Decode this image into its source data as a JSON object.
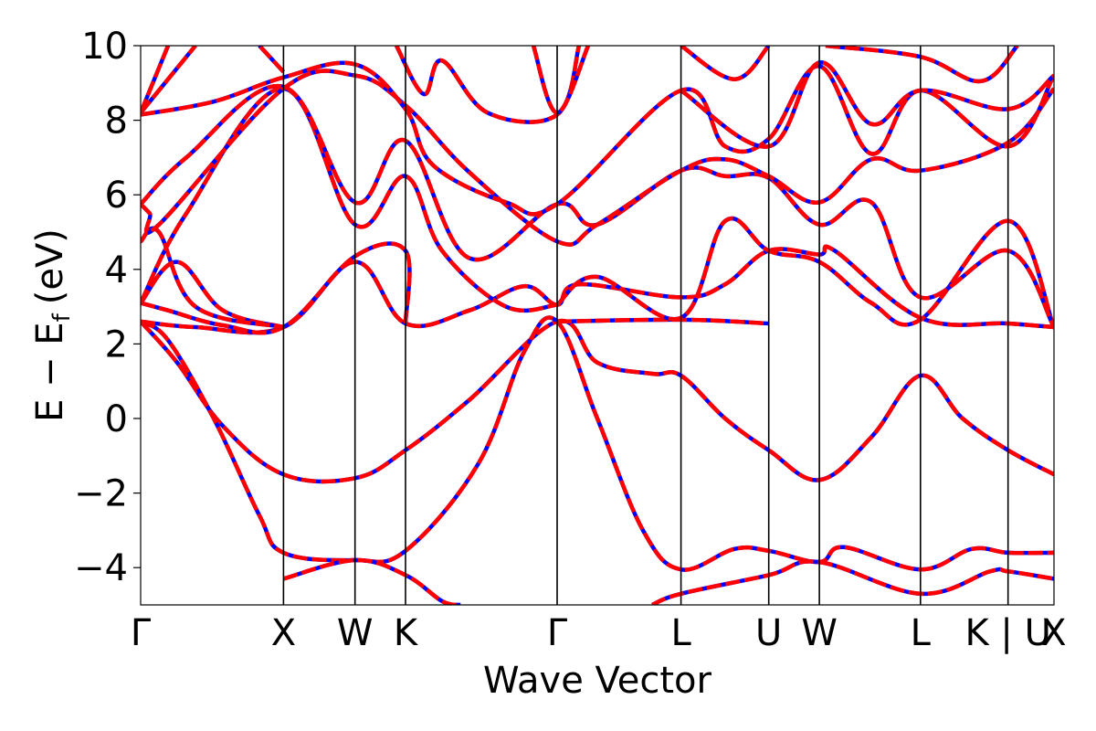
{
  "chart_data": {
    "type": "line",
    "title": "",
    "xlabel": "Wave Vector",
    "ylabel": "E − E",
    "ylabel_subscript": "f",
    "ylabel_unit": "(eV)",
    "ylim": [
      -5,
      10
    ],
    "yticks": [
      {
        "value": -4,
        "label": "−4"
      },
      {
        "value": -2,
        "label": "−2"
      },
      {
        "value": 0,
        "label": "0"
      },
      {
        "value": 2,
        "label": "2"
      },
      {
        "value": 4,
        "label": "4"
      },
      {
        "value": 6,
        "label": "6"
      },
      {
        "value": 8,
        "label": "8"
      },
      {
        "value": 10,
        "label": "10"
      }
    ],
    "kpoints": [
      {
        "label": "Γ",
        "x": 0.0
      },
      {
        "label": "X",
        "x": 0.1564
      },
      {
        "label": "W",
        "x": 0.2347
      },
      {
        "label": "K",
        "x": 0.29
      },
      {
        "label": "Γ",
        "x": 0.456
      },
      {
        "label": "L",
        "x": 0.5916
      },
      {
        "label": "U",
        "x": 0.6877
      },
      {
        "label": "W",
        "x": 0.7431
      },
      {
        "label": "L",
        "x": 0.8538
      },
      {
        "label": "K | U",
        "x": 0.9497
      },
      {
        "label": "X",
        "x": 1.0
      }
    ],
    "colors": {
      "line_a": "#ff0000",
      "line_b": "#0000ff",
      "frame": "#000000"
    },
    "series": [
      {
        "values": [
          [
            0,
            2.6
          ],
          [
            0.04,
            1.5
          ],
          [
            0.09,
            -0.2
          ],
          [
            0.1564,
            -1.5
          ],
          [
            0.2347,
            -1.6
          ],
          [
            0.29,
            -0.85
          ],
          [
            0.36,
            0.5
          ],
          [
            0.456,
            2.6
          ],
          [
            0.5,
            1.5
          ],
          [
            0.56,
            1.2
          ],
          [
            0.5916,
            1.15
          ],
          [
            0.64,
            0
          ],
          [
            0.6877,
            -0.85
          ],
          [
            0.7431,
            -1.65
          ],
          [
            0.8,
            -0.5
          ],
          [
            0.8538,
            1.15
          ],
          [
            0.9,
            0
          ],
          [
            0.9497,
            -0.85
          ],
          [
            1.0,
            -1.5
          ]
        ]
      },
      {
        "values": [
          [
            0,
            2.6
          ],
          [
            0.03,
            2.1
          ],
          [
            0.08,
            0.0
          ],
          [
            0.13,
            -2.6
          ],
          [
            0.1564,
            -3.6
          ],
          [
            0.2347,
            -3.8
          ],
          [
            0.29,
            -3.55
          ],
          [
            0.37,
            -1.2
          ],
          [
            0.42,
            1.8
          ],
          [
            0.456,
            2.6
          ],
          [
            0.5,
            0.0
          ],
          [
            0.55,
            -3.0
          ],
          [
            0.5916,
            -4.05
          ],
          [
            0.65,
            -3.5
          ],
          [
            0.6877,
            -3.55
          ],
          [
            0.7431,
            -3.85
          ],
          [
            0.77,
            -3.45
          ],
          [
            0.8538,
            -4.05
          ],
          [
            0.91,
            -3.5
          ],
          [
            0.9497,
            -3.6
          ],
          [
            1.0,
            -3.6
          ]
        ]
      },
      {
        "values": [
          [
            0.1564,
            -4.3
          ],
          [
            0.2347,
            -3.8
          ],
          [
            0.29,
            -4.2
          ],
          [
            0.33,
            -4.9
          ],
          [
            0.35,
            -5.0
          ]
        ]
      },
      {
        "values": [
          [
            0.56,
            -5.0
          ],
          [
            0.5916,
            -4.7
          ],
          [
            0.6877,
            -4.2
          ],
          [
            0.7431,
            -3.85
          ],
          [
            0.8538,
            -4.7
          ],
          [
            0.93,
            -4.1
          ],
          [
            0.9497,
            -4.1
          ],
          [
            1.0,
            -4.3
          ]
        ]
      },
      {
        "values": [
          [
            0,
            2.6
          ],
          [
            0.06,
            2.45
          ],
          [
            0.1564,
            2.45
          ],
          [
            0.2347,
            4.2
          ],
          [
            0.29,
            2.55
          ],
          [
            0.36,
            2.9
          ],
          [
            0.42,
            3.55
          ],
          [
            0.456,
            3.05
          ],
          [
            0.48,
            3.6
          ],
          [
            0.5916,
            3.25
          ],
          [
            0.64,
            3.6
          ],
          [
            0.6877,
            4.5
          ],
          [
            0.7431,
            4.4
          ],
          [
            0.76,
            4.5
          ],
          [
            0.8538,
            2.7
          ],
          [
            0.9497,
            2.55
          ],
          [
            1.0,
            2.45
          ]
        ]
      },
      {
        "values": [
          [
            0,
            3.1
          ],
          [
            0.03,
            2.9
          ],
          [
            0.09,
            2.5
          ],
          [
            0.1564,
            2.45
          ],
          [
            0.2347,
            4.35
          ],
          [
            0.29,
            4.5
          ],
          [
            0.29,
            2.55
          ]
        ]
      },
      {
        "values": [
          [
            0.456,
            2.6
          ],
          [
            0.5916,
            2.65
          ],
          [
            0.6877,
            2.55
          ]
        ]
      },
      {
        "values": [
          [
            0.456,
            3.05
          ],
          [
            0.5,
            3.8
          ],
          [
            0.5916,
            2.7
          ],
          [
            0.64,
            5.3
          ],
          [
            0.6877,
            4.5
          ],
          [
            0.7431,
            4.2
          ],
          [
            0.8,
            3.1
          ],
          [
            0.8538,
            2.65
          ],
          [
            0.9497,
            5.3
          ],
          [
            1.0,
            2.45
          ]
        ]
      },
      {
        "values": [
          [
            0,
            3.1
          ],
          [
            0.04,
            4.2
          ],
          [
            0.09,
            2.9
          ],
          [
            0.1564,
            2.45
          ]
        ]
      },
      {
        "values": [
          [
            0,
            4.75
          ],
          [
            0.02,
            5.0
          ],
          [
            0.06,
            3.0
          ],
          [
            0.1564,
            2.45
          ]
        ]
      },
      {
        "values": [
          [
            0,
            3.1
          ],
          [
            0.05,
            5.5
          ],
          [
            0.1564,
            8.85
          ],
          [
            0.2347,
            5.2
          ],
          [
            0.29,
            6.5
          ],
          [
            0.33,
            4.5
          ],
          [
            0.4,
            3.0
          ],
          [
            0.456,
            3.05
          ]
        ]
      },
      {
        "values": [
          [
            0,
            5.75
          ],
          [
            0.05,
            7.0
          ],
          [
            0.1564,
            8.9
          ],
          [
            0.2347,
            5.8
          ],
          [
            0.29,
            7.45
          ],
          [
            0.36,
            4.3
          ],
          [
            0.456,
            5.75
          ],
          [
            0.5,
            5.2
          ],
          [
            0.5916,
            6.65
          ],
          [
            0.64,
            6.5
          ],
          [
            0.6877,
            6.45
          ],
          [
            0.7431,
            5.2
          ],
          [
            0.8,
            5.8
          ],
          [
            0.8538,
            3.25
          ],
          [
            0.9497,
            4.5
          ],
          [
            1.0,
            2.45
          ]
        ]
      },
      {
        "values": [
          [
            0,
            5.75
          ],
          [
            0.01,
            5.5
          ],
          [
            0.02,
            5.2
          ],
          [
            0.1564,
            8.85
          ],
          [
            0.2347,
            9.2
          ],
          [
            0.29,
            8.4
          ],
          [
            0.36,
            6.6
          ],
          [
            0.456,
            4.75
          ],
          [
            0.5,
            5.2
          ],
          [
            0.5916,
            6.65
          ],
          [
            0.64,
            6.95
          ],
          [
            0.6877,
            6.5
          ],
          [
            0.7431,
            5.8
          ],
          [
            0.8,
            6.95
          ],
          [
            0.8538,
            6.65
          ],
          [
            0.9497,
            7.4
          ],
          [
            1.0,
            8.85
          ]
        ]
      },
      {
        "values": [
          [
            0,
            8.15
          ],
          [
            0.08,
            8.5
          ],
          [
            0.1564,
            9.15
          ],
          [
            0.2347,
            9.5
          ],
          [
            0.29,
            8.3
          ],
          [
            0.32,
            6.8
          ],
          [
            0.4,
            5.8
          ],
          [
            0.456,
            5.75
          ],
          [
            0.5916,
            8.8
          ],
          [
            0.64,
            7.3
          ],
          [
            0.6877,
            7.5
          ],
          [
            0.7431,
            9.45
          ],
          [
            0.8,
            7.1
          ],
          [
            0.8538,
            8.8
          ],
          [
            0.9497,
            7.3
          ],
          [
            1.0,
            9.2
          ]
        ]
      },
      {
        "values": [
          [
            0,
            8.2
          ],
          [
            0.06,
            10.0
          ]
        ]
      },
      {
        "values": [
          [
            0,
            8.2
          ],
          [
            0.03,
            10.0
          ]
        ]
      },
      {
        "values": [
          [
            0.1564,
            9.3
          ],
          [
            0.13,
            10.0
          ]
        ]
      },
      {
        "values": [
          [
            0.28,
            10.0
          ],
          [
            0.31,
            8.7
          ],
          [
            0.33,
            9.6
          ],
          [
            0.38,
            8.2
          ],
          [
            0.456,
            8.15
          ],
          [
            0.48,
            10.0
          ]
        ]
      },
      {
        "values": [
          [
            0.43,
            10.0
          ],
          [
            0.456,
            8.2
          ],
          [
            0.49,
            10.0
          ]
        ]
      },
      {
        "values": [
          [
            0.5916,
            8.8
          ],
          [
            0.6877,
            7.3
          ],
          [
            0.7431,
            9.55
          ],
          [
            0.8,
            7.9
          ],
          [
            0.8538,
            8.8
          ],
          [
            0.9497,
            8.3
          ],
          [
            1.0,
            9.2
          ]
        ]
      },
      {
        "values": [
          [
            0.5916,
            10.0
          ],
          [
            0.65,
            9.1
          ],
          [
            0.6877,
            10.0
          ]
        ]
      },
      {
        "values": [
          [
            0.75,
            10.0
          ],
          [
            0.8538,
            9.7
          ],
          [
            0.92,
            9.05
          ],
          [
            0.96,
            10.0
          ]
        ]
      }
    ]
  }
}
